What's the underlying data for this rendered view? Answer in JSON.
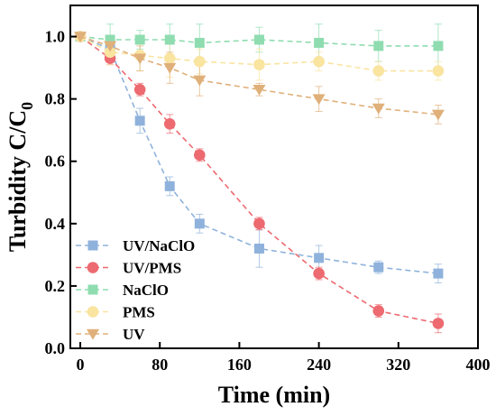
{
  "chart_data": {
    "type": "line",
    "xlabel": "Time (min)",
    "ylabel": {
      "main": "Turbidity C/C",
      "sub": "0"
    },
    "xlim": [
      -10,
      400
    ],
    "ylim": [
      0,
      1.1
    ],
    "xticks": [
      0,
      80,
      160,
      240,
      320,
      400
    ],
    "yticks": [
      0.0,
      0.2,
      0.4,
      0.6,
      0.8,
      1.0
    ],
    "xtick_labels": [
      "0",
      "80",
      "160",
      "240",
      "320",
      "400"
    ],
    "ytick_labels": [
      "0.0",
      "0.2",
      "0.4",
      "0.6",
      "0.8",
      "1.0"
    ],
    "legend_position": "bottom-left",
    "line_style": "dashed",
    "error_bars": true,
    "series": [
      {
        "name": "UV/NaClO",
        "marker": "square",
        "color": "#8fb2dc",
        "x": [
          0,
          30,
          60,
          90,
          120,
          180,
          240,
          300,
          360
        ],
        "y": [
          1.0,
          0.96,
          0.73,
          0.52,
          0.4,
          0.32,
          0.29,
          0.26,
          0.24
        ],
        "err": [
          0.01,
          0.03,
          0.04,
          0.03,
          0.03,
          0.06,
          0.04,
          0.02,
          0.03
        ]
      },
      {
        "name": "UV/PMS",
        "marker": "circle",
        "color": "#ec6a70",
        "x": [
          0,
          30,
          60,
          90,
          120,
          180,
          240,
          300,
          360
        ],
        "y": [
          1.0,
          0.93,
          0.83,
          0.72,
          0.62,
          0.4,
          0.24,
          0.12,
          0.08
        ],
        "err": [
          0.01,
          0.02,
          0.02,
          0.03,
          0.02,
          0.02,
          0.02,
          0.02,
          0.03
        ]
      },
      {
        "name": "NaClO",
        "marker": "square",
        "color": "#8fdcb0",
        "x": [
          0,
          30,
          60,
          90,
          120,
          180,
          240,
          300,
          360
        ],
        "y": [
          1.0,
          0.99,
          0.99,
          0.99,
          0.98,
          0.99,
          0.98,
          0.97,
          0.97
        ],
        "err": [
          0.01,
          0.05,
          0.03,
          0.05,
          0.06,
          0.04,
          0.06,
          0.05,
          0.07
        ]
      },
      {
        "name": "PMS",
        "marker": "circle",
        "color": "#f9e4a0",
        "x": [
          0,
          30,
          60,
          90,
          120,
          180,
          240,
          300,
          360
        ],
        "y": [
          1.0,
          0.95,
          0.94,
          0.93,
          0.92,
          0.91,
          0.92,
          0.89,
          0.89
        ],
        "err": [
          0.01,
          0.04,
          0.05,
          0.06,
          0.04,
          0.05,
          0.03,
          0.03,
          0.03
        ]
      },
      {
        "name": "UV",
        "marker": "triangle-down",
        "color": "#e0b07a",
        "x": [
          0,
          30,
          60,
          90,
          120,
          180,
          240,
          300,
          360
        ],
        "y": [
          1.0,
          0.97,
          0.93,
          0.9,
          0.86,
          0.83,
          0.8,
          0.77,
          0.75
        ],
        "err": [
          0.01,
          0.03,
          0.04,
          0.05,
          0.05,
          0.02,
          0.04,
          0.03,
          0.03
        ]
      }
    ]
  }
}
